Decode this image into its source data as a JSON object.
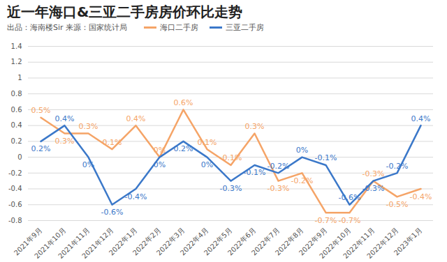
{
  "chart_data": {
    "type": "line",
    "title": "近一年海口&三亚二手房房价环比走势",
    "subtitle": "出品：海南楼Sir 来源：国家统计局",
    "categories": [
      "2021年9月",
      "2021年10月",
      "2021年11月",
      "2021年12月",
      "2022年1月",
      "2022年2月",
      "2022年3月",
      "2022年4月",
      "2022年5月",
      "2022年6月",
      "2022年7月",
      "2022年8月",
      "2022年9月",
      "2022年10月",
      "2022年11月",
      "2022年12月",
      "2023年1月"
    ],
    "series": [
      {
        "name": "海口二手房",
        "color": "#f5a467",
        "values": [
          0.5,
          0.3,
          0.3,
          0.1,
          0.4,
          0,
          0.6,
          0.1,
          -0.1,
          0.3,
          -0.3,
          -0.2,
          -0.7,
          -0.7,
          -0.3,
          -0.5,
          -0.4
        ],
        "value_labels": [
          "0.5%",
          "0.3%",
          "0.3%",
          "0.1%",
          "0.4%",
          "0%",
          "0.6%",
          "0.1%",
          "-0.1%",
          "0.3%",
          "-0.3%",
          "-0.2%",
          "-0.7%",
          "-0.7%",
          "-0.3%",
          "-0.5%",
          "-0.4%"
        ]
      },
      {
        "name": "三亚二手房",
        "color": "#3b78c9",
        "values": [
          0.2,
          0.4,
          0,
          -0.6,
          -0.4,
          0,
          0.2,
          0,
          -0.3,
          -0.1,
          -0.2,
          0,
          -0.1,
          -0.6,
          -0.3,
          -0.2,
          0.4
        ],
        "value_labels": [
          "0.2%",
          "0.4%",
          "0%",
          "-0.6%",
          "-0.4%",
          "0%",
          "0.2%",
          "0%",
          "-0.3%",
          "-0.1%",
          "-0.2%",
          "0%",
          "-0.1%",
          "-0.6%",
          "-0.3%",
          "-0.2%",
          "0.4%"
        ]
      }
    ],
    "ylim": [
      -0.8,
      1.4
    ],
    "yticks": [
      -0.8,
      -0.6,
      -0.4,
      -0.2,
      0,
      0.2,
      0.4,
      0.6,
      0.8,
      1,
      1.2,
      1.4
    ],
    "grid": true,
    "data_labels": true,
    "legend": "top"
  }
}
